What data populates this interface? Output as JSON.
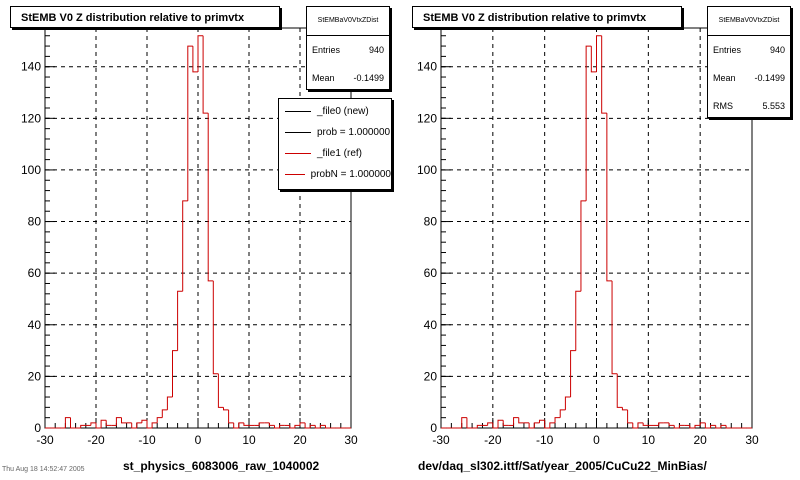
{
  "footer_text": "Thu Aug 18 14:52:47 2005",
  "chart_data": [
    {
      "type": "histogram",
      "title": "StEMB V0 Z distribution relative to primvtx",
      "xlabel": "st_physics_6083006_raw_1040002",
      "ylabel": "",
      "xlim": [
        -30,
        30
      ],
      "ylim": [
        0,
        155
      ],
      "xticks": [
        "-30",
        "-20",
        "-10",
        "0",
        "10",
        "20",
        "30"
      ],
      "yticks": [
        "0",
        "20",
        "40",
        "60",
        "80",
        "100",
        "120",
        "140"
      ],
      "grid": true,
      "bin_width": 1,
      "stats": {
        "name": "StEMBaV0VtxZDist",
        "entries_label": "Entries",
        "entries": "940",
        "mean_label": "Mean",
        "mean": "-0.1499"
      },
      "legend": {
        "placement": "top-right",
        "entries": [
          {
            "label": "_file0 (new)",
            "color": "#000000"
          },
          {
            "label": "prob = 1.000000",
            "color": "#000000"
          },
          {
            "label": "_file1 (ref)",
            "color": "#cc0000"
          },
          {
            "label": "probN = 1.000000",
            "color": "#cc0000"
          }
        ]
      },
      "series": [
        {
          "color": "#cc0000",
          "values": [
            0,
            0,
            0,
            0,
            4,
            0,
            0,
            1,
            1,
            2,
            0,
            3,
            1,
            1,
            4,
            2,
            2,
            0,
            2,
            3,
            0,
            2,
            4,
            7,
            12,
            30,
            53,
            88,
            148,
            138,
            152,
            122,
            57,
            21,
            8,
            7,
            2,
            0,
            2,
            1,
            1,
            1,
            2,
            2,
            1,
            0,
            1,
            1,
            0,
            1,
            2,
            0,
            1,
            0,
            1,
            0,
            0,
            0,
            0,
            0
          ]
        }
      ]
    },
    {
      "type": "histogram",
      "title": "StEMB V0 Z distribution relative to primvtx",
      "xlabel": "dev/daq_sl302.ittf/Sat/year_2005/CuCu22_MinBias/",
      "ylabel": "",
      "xlim": [
        -30,
        30
      ],
      "ylim": [
        0,
        155
      ],
      "xticks": [
        "-30",
        "-20",
        "-10",
        "0",
        "10",
        "20",
        "30"
      ],
      "yticks": [
        "0",
        "20",
        "40",
        "60",
        "80",
        "100",
        "120",
        "140"
      ],
      "grid": true,
      "bin_width": 1,
      "stats": {
        "name": "StEMBaV0VtxZDist",
        "entries_label": "Entries",
        "entries": "940",
        "mean_label": "Mean",
        "mean": "-0.1499",
        "rms_label": "RMS",
        "rms": "5.553"
      },
      "series": [
        {
          "color": "#cc0000",
          "values": [
            0,
            0,
            0,
            0,
            4,
            0,
            0,
            1,
            1,
            2,
            0,
            3,
            1,
            1,
            4,
            2,
            2,
            0,
            2,
            3,
            0,
            2,
            4,
            7,
            12,
            30,
            53,
            88,
            148,
            138,
            152,
            122,
            57,
            21,
            8,
            7,
            2,
            0,
            2,
            1,
            1,
            1,
            2,
            2,
            1,
            0,
            1,
            1,
            0,
            1,
            2,
            0,
            1,
            0,
            1,
            0,
            0,
            0,
            0,
            0
          ]
        }
      ]
    }
  ]
}
